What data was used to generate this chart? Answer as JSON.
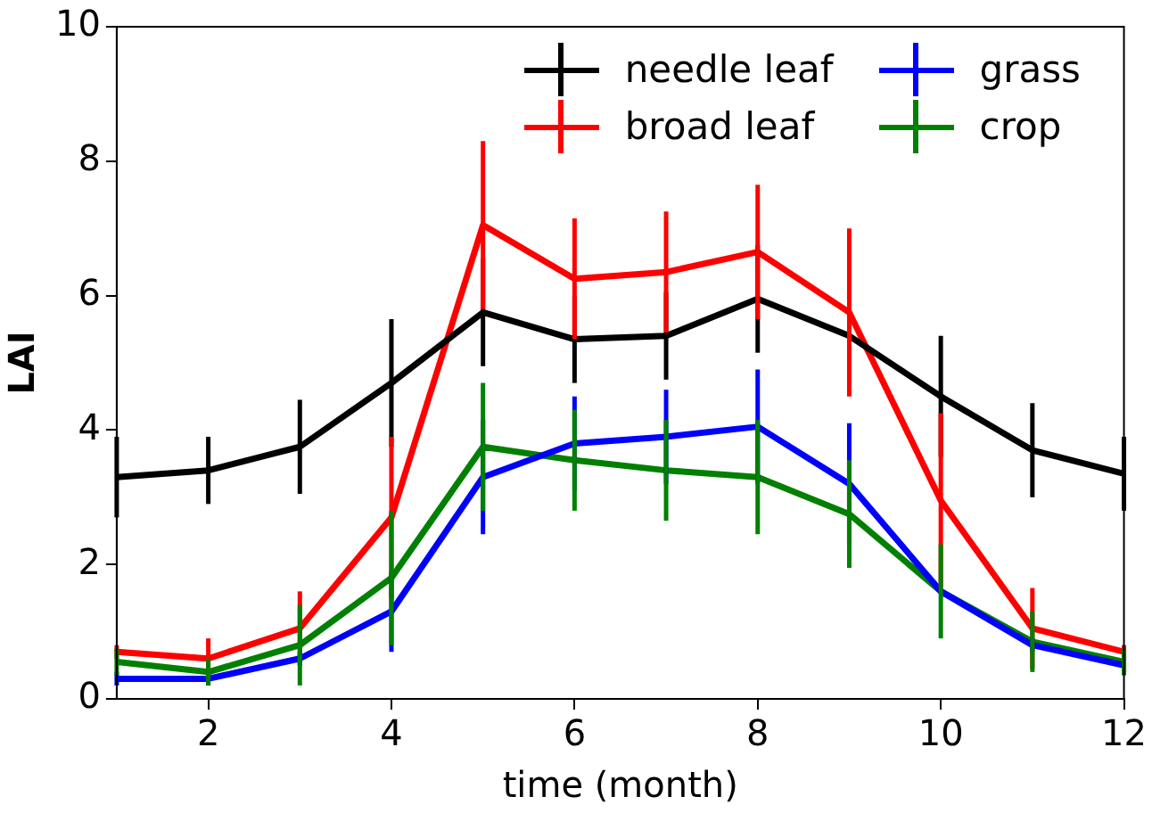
{
  "chart_data": {
    "type": "line",
    "xlabel": "time (month)",
    "ylabel": "LAI",
    "x": [
      1,
      2,
      3,
      4,
      5,
      6,
      7,
      8,
      9,
      10,
      11,
      12
    ],
    "xlim": [
      1,
      12
    ],
    "xticks": [
      2,
      4,
      6,
      8,
      10,
      12
    ],
    "ylim": [
      0,
      10
    ],
    "yticks": [
      0,
      2,
      4,
      6,
      8,
      10
    ],
    "grid": false,
    "legend": "top right",
    "marker": "none",
    "line_style": "solid",
    "series": [
      {
        "name": "needle leaf",
        "color": "#000000",
        "values": [
          3.3,
          3.4,
          3.75,
          4.7,
          5.75,
          5.35,
          5.4,
          5.95,
          5.4,
          4.5,
          3.7,
          3.35
        ],
        "errors": [
          0.6,
          0.5,
          0.7,
          0.95,
          0.8,
          0.65,
          0.65,
          0.8,
          null,
          0.9,
          0.7,
          0.55
        ]
      },
      {
        "name": "broad leaf",
        "color": "#ff0000",
        "values": [
          0.7,
          0.6,
          1.05,
          2.7,
          7.05,
          6.25,
          6.35,
          6.65,
          5.75,
          2.95,
          1.05,
          0.7
        ],
        "errors": [
          0.1,
          0.3,
          0.55,
          1.2,
          1.25,
          0.9,
          0.9,
          1.0,
          1.25,
          1.3,
          0.6,
          0.1
        ]
      },
      {
        "name": "grass",
        "color": "#0000ff",
        "values": [
          0.3,
          0.3,
          0.6,
          1.3,
          3.3,
          3.8,
          3.9,
          4.05,
          3.2,
          1.6,
          0.8,
          0.5
        ],
        "errors": [
          0.1,
          0.1,
          0.1,
          0.6,
          0.85,
          0.7,
          0.7,
          0.85,
          0.9,
          null,
          0.1,
          0.1
        ]
      },
      {
        "name": "crop",
        "color": "#008000",
        "values": [
          0.55,
          0.4,
          0.8,
          1.8,
          3.75,
          3.55,
          3.4,
          3.3,
          2.75,
          1.6,
          0.85,
          0.55
        ],
        "errors": [
          0.2,
          0.2,
          0.6,
          1.0,
          0.95,
          0.75,
          0.75,
          0.85,
          0.8,
          0.7,
          0.45,
          0.2
        ]
      }
    ]
  }
}
